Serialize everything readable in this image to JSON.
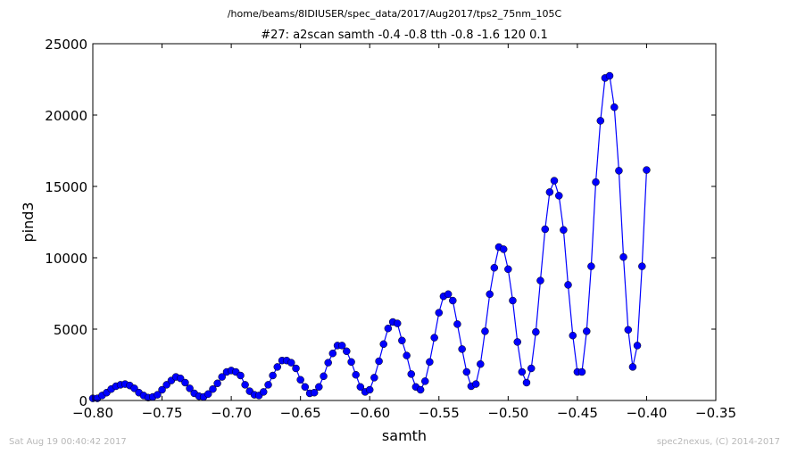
{
  "chart_data": {
    "type": "line",
    "path_title": "/home/beams/8IDIUSER/spec_data/2017/Aug2017/tps2_75nm_105C",
    "title": "#27: a2scan  samth -0.4 -0.8  tth -0.8 -1.6  120 0.1",
    "xlabel": "samth",
    "ylabel": "pind3",
    "xlim": [
      -0.8,
      -0.35
    ],
    "ylim": [
      0,
      25000
    ],
    "xticks": [
      -0.8,
      -0.75,
      -0.7,
      -0.65,
      -0.6,
      -0.55,
      -0.5,
      -0.45,
      -0.4,
      -0.35
    ],
    "xtick_labels": [
      "−0.80",
      "−0.75",
      "−0.70",
      "−0.65",
      "−0.60",
      "−0.55",
      "−0.50",
      "−0.45",
      "−0.40",
      "−0.35"
    ],
    "yticks": [
      0,
      5000,
      10000,
      15000,
      20000,
      25000
    ],
    "ytick_labels": [
      "0",
      "5000",
      "10000",
      "15000",
      "20000",
      "25000"
    ],
    "grid": false,
    "series": [
      {
        "color": "#0000ff",
        "marker": "circle",
        "points": [
          [
            -0.8,
            150
          ],
          [
            -0.7967,
            150
          ],
          [
            -0.7933,
            350
          ],
          [
            -0.79,
            550
          ],
          [
            -0.7867,
            800
          ],
          [
            -0.7833,
            1000
          ],
          [
            -0.78,
            1100
          ],
          [
            -0.7767,
            1150
          ],
          [
            -0.7733,
            1050
          ],
          [
            -0.77,
            850
          ],
          [
            -0.7667,
            550
          ],
          [
            -0.7633,
            350
          ],
          [
            -0.76,
            200
          ],
          [
            -0.7567,
            250
          ],
          [
            -0.7533,
            400
          ],
          [
            -0.75,
            750
          ],
          [
            -0.7467,
            1100
          ],
          [
            -0.7433,
            1400
          ],
          [
            -0.74,
            1650
          ],
          [
            -0.7367,
            1550
          ],
          [
            -0.7333,
            1250
          ],
          [
            -0.73,
            850
          ],
          [
            -0.7267,
            500
          ],
          [
            -0.7233,
            300
          ],
          [
            -0.72,
            250
          ],
          [
            -0.7167,
            450
          ],
          [
            -0.7133,
            800
          ],
          [
            -0.71,
            1200
          ],
          [
            -0.7067,
            1650
          ],
          [
            -0.7033,
            2000
          ],
          [
            -0.7,
            2100
          ],
          [
            -0.6967,
            2000
          ],
          [
            -0.6933,
            1750
          ],
          [
            -0.69,
            1100
          ],
          [
            -0.6867,
            650
          ],
          [
            -0.6833,
            400
          ],
          [
            -0.68,
            350
          ],
          [
            -0.6767,
            600
          ],
          [
            -0.6733,
            1100
          ],
          [
            -0.67,
            1750
          ],
          [
            -0.6667,
            2350
          ],
          [
            -0.6633,
            2800
          ],
          [
            -0.66,
            2800
          ],
          [
            -0.6567,
            2650
          ],
          [
            -0.6533,
            2250
          ],
          [
            -0.65,
            1450
          ],
          [
            -0.6467,
            950
          ],
          [
            -0.6433,
            500
          ],
          [
            -0.64,
            550
          ],
          [
            -0.6367,
            950
          ],
          [
            -0.6333,
            1700
          ],
          [
            -0.63,
            2650
          ],
          [
            -0.6267,
            3300
          ],
          [
            -0.6233,
            3850
          ],
          [
            -0.62,
            3850
          ],
          [
            -0.6167,
            3450
          ],
          [
            -0.6133,
            2700
          ],
          [
            -0.61,
            1800
          ],
          [
            -0.6067,
            950
          ],
          [
            -0.6033,
            600
          ],
          [
            -0.6,
            750
          ],
          [
            -0.5967,
            1600
          ],
          [
            -0.5933,
            2750
          ],
          [
            -0.59,
            3950
          ],
          [
            -0.5867,
            5050
          ],
          [
            -0.5833,
            5500
          ],
          [
            -0.58,
            5400
          ],
          [
            -0.5767,
            4200
          ],
          [
            -0.5733,
            3150
          ],
          [
            -0.57,
            1850
          ],
          [
            -0.5667,
            950
          ],
          [
            -0.5633,
            750
          ],
          [
            -0.56,
            1350
          ],
          [
            -0.5567,
            2700
          ],
          [
            -0.5533,
            4400
          ],
          [
            -0.55,
            6150
          ],
          [
            -0.5467,
            7300
          ],
          [
            -0.5433,
            7450
          ],
          [
            -0.54,
            7000
          ],
          [
            -0.5367,
            5350
          ],
          [
            -0.5333,
            3600
          ],
          [
            -0.53,
            2000
          ],
          [
            -0.5267,
            1000
          ],
          [
            -0.5233,
            1150
          ],
          [
            -0.52,
            2550
          ],
          [
            -0.5167,
            4850
          ],
          [
            -0.5133,
            7450
          ],
          [
            -0.51,
            9300
          ],
          [
            -0.5067,
            10750
          ],
          [
            -0.5033,
            10600
          ],
          [
            -0.5,
            9200
          ],
          [
            -0.4967,
            7000
          ],
          [
            -0.4933,
            4100
          ],
          [
            -0.49,
            2000
          ],
          [
            -0.4867,
            1250
          ],
          [
            -0.4833,
            2250
          ],
          [
            -0.48,
            4800
          ],
          [
            -0.4767,
            8400
          ],
          [
            -0.4733,
            12000
          ],
          [
            -0.47,
            14600
          ],
          [
            -0.4667,
            15400
          ],
          [
            -0.4633,
            14350
          ],
          [
            -0.46,
            11950
          ],
          [
            -0.4567,
            8100
          ],
          [
            -0.4533,
            4550
          ],
          [
            -0.45,
            2000
          ],
          [
            -0.4467,
            2000
          ],
          [
            -0.4433,
            4850
          ],
          [
            -0.44,
            9400
          ],
          [
            -0.4367,
            15300
          ],
          [
            -0.4333,
            19600
          ],
          [
            -0.43,
            22600
          ],
          [
            -0.4267,
            22750
          ],
          [
            -0.4233,
            20550
          ],
          [
            -0.42,
            16100
          ],
          [
            -0.4167,
            10050
          ],
          [
            -0.4133,
            4950
          ],
          [
            -0.41,
            2350
          ],
          [
            -0.4067,
            3850
          ],
          [
            -0.4033,
            9400
          ],
          [
            -0.4,
            16150
          ]
        ]
      }
    ]
  },
  "footer": {
    "timestamp": "Sat Aug 19 00:40:42 2017",
    "credit": "spec2nexus, (C) 2014-2017"
  }
}
